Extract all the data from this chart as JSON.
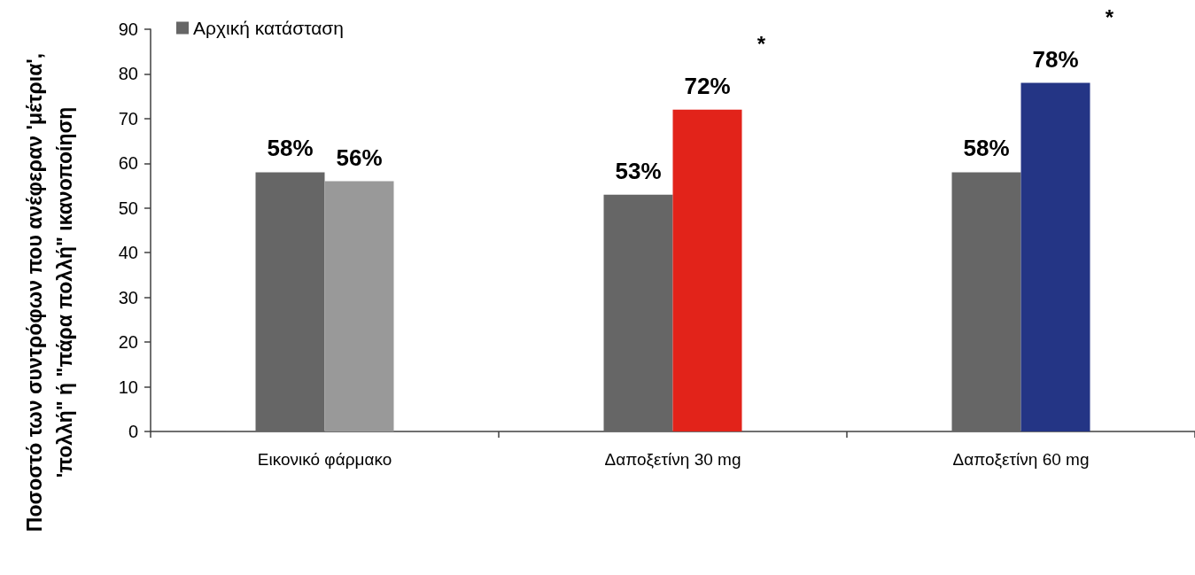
{
  "chart_data": {
    "type": "bar",
    "ylabel": "Ποσοστό των συντρόφων που ανέφεραν 'μέτρια',\n'πολλή\" ή \"πάρα πολλή\" ικανοποίηση",
    "categories": [
      "Εικονικό φάρμακο",
      "Δαποξετίνη 30 mg",
      "Δαποξετίνη 60 mg"
    ],
    "series": [
      {
        "name": "Αρχική κατάσταση",
        "color": "#666666",
        "values": [
          58,
          53,
          58
        ],
        "value_labels": [
          "58%",
          "53%",
          "58%"
        ]
      },
      {
        "colors": [
          "#999999",
          "#e2231a",
          "#243585"
        ],
        "values": [
          56,
          72,
          78
        ],
        "value_labels": [
          "56%",
          "72%",
          "78%"
        ]
      }
    ],
    "ylim": [
      0,
      90
    ],
    "yticks": [
      0,
      10,
      20,
      30,
      40,
      50,
      60,
      70,
      80,
      90
    ],
    "legend": "top left",
    "annotations": [
      "*",
      "*"
    ]
  }
}
